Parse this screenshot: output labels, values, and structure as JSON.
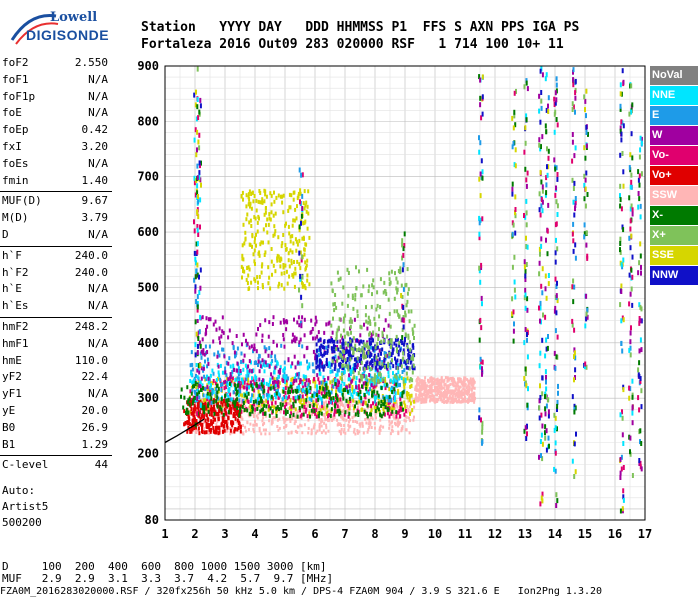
{
  "logo": {
    "line1": "Lowell",
    "line2": "DIGISONDE"
  },
  "header": {
    "row1": "Station   YYYY DAY   DDD HHMMSS P1  FFS S AXN PPS IGA PS",
    "row2": "Fortaleza 2016 Out09 283 020000 RSF   1 714 100 10+ 11"
  },
  "params": [
    {
      "label": "foF2",
      "value": "2.550"
    },
    {
      "label": "foF1",
      "value": "N/A"
    },
    {
      "label": "foF1p",
      "value": "N/A"
    },
    {
      "label": "foE",
      "value": "N/A"
    },
    {
      "label": "foEp",
      "value": "0.42"
    },
    {
      "label": "fxI",
      "value": "3.20"
    },
    {
      "label": "foEs",
      "value": "N/A"
    },
    {
      "label": "fmin",
      "value": "1.40"
    },
    {
      "label": "MUF(D)",
      "value": "9.67"
    },
    {
      "label": "M(D)",
      "value": "3.79"
    },
    {
      "label": "D",
      "value": "N/A"
    },
    {
      "label": "h`F",
      "value": "240.0"
    },
    {
      "label": "h`F2",
      "value": "240.0"
    },
    {
      "label": "h`E",
      "value": "N/A"
    },
    {
      "label": "h`Es",
      "value": "N/A"
    },
    {
      "label": "hmF2",
      "value": "248.2"
    },
    {
      "label": "hmF1",
      "value": "N/A"
    },
    {
      "label": "hmE",
      "value": "110.0"
    },
    {
      "label": "yF2",
      "value": "22.4"
    },
    {
      "label": "yF1",
      "value": "N/A"
    },
    {
      "label": "yE",
      "value": "20.0"
    },
    {
      "label": "B0",
      "value": "26.9"
    },
    {
      "label": "B1",
      "value": "1.29"
    },
    {
      "label": "C-level",
      "value": "44"
    }
  ],
  "autoscale": {
    "line1": "Auto:",
    "line2": "Artist5",
    "line3": "500200"
  },
  "bottom": {
    "d_row": "D     100  200  400  600  800 1000 1500 3000 [km]",
    "muf_row": "MUF   2.9  2.9  3.1  3.3  3.7  4.2  5.7  9.7 [MHz]",
    "file_row": "FZA0M_2016283020000.RSF / 320fx256h 50 kHz 5.0 km / DPS-4 FZA0M 904 / 3.9 S 321.6 E   Ion2Png 1.3.20"
  },
  "legend": [
    {
      "name": "NoVal",
      "color": "#808080"
    },
    {
      "name": "NNE",
      "color": "#00e5ff"
    },
    {
      "name": "E",
      "color": "#1e9be8"
    },
    {
      "name": "W",
      "color": "#a000a0"
    },
    {
      "name": "Vo-",
      "color": "#e0006e"
    },
    {
      "name": "Vo+",
      "color": "#e00000"
    },
    {
      "name": "SSW",
      "color": "#ffb6b6"
    },
    {
      "name": "X-",
      "color": "#007a00"
    },
    {
      "name": "X+",
      "color": "#7fc25a"
    },
    {
      "name": "SSE",
      "color": "#d6d600"
    },
    {
      "name": "NNW",
      "color": "#1010c8"
    }
  ],
  "chart_data": {
    "type": "scatter",
    "xlabel": "",
    "ylabel": "",
    "xlim": [
      1,
      17
    ],
    "ylim": [
      80,
      900
    ],
    "x_ticks": [
      1,
      2,
      3,
      4,
      5,
      6,
      7,
      8,
      9,
      10,
      11,
      12,
      13,
      14,
      15,
      16,
      17
    ],
    "y_ticks": [
      80,
      200,
      300,
      400,
      500,
      600,
      700,
      800,
      900
    ],
    "grid": true,
    "trace": {
      "name": "",
      "color": "#000000",
      "points": [
        [
          1.0,
          220
        ],
        [
          1.4,
          232
        ],
        [
          1.8,
          245
        ],
        [
          2.1,
          255
        ],
        [
          2.3,
          262
        ]
      ]
    },
    "echo_regions": [
      {
        "name": "SSW",
        "color": "#ffb6b6",
        "x": [
          1.9,
          9.3
        ],
        "y": [
          238,
          300
        ]
      },
      {
        "name": "SSW",
        "color": "#ffb6b6",
        "x": [
          9.3,
          11.3
        ],
        "y": [
          295,
          340
        ]
      },
      {
        "name": "SSE",
        "color": "#d6d600",
        "x": [
          1.8,
          9.3
        ],
        "y": [
          275,
          340
        ]
      },
      {
        "name": "Vo-",
        "color": "#e0006e",
        "x": [
          1.8,
          9.0
        ],
        "y": [
          270,
          340
        ]
      },
      {
        "name": "Vo+",
        "color": "#e00000",
        "x": [
          1.6,
          3.5
        ],
        "y": [
          240,
          300
        ]
      },
      {
        "name": "E",
        "color": "#1e9be8",
        "x": [
          1.8,
          9.0
        ],
        "y": [
          295,
          400
        ]
      },
      {
        "name": "NNE",
        "color": "#00e5ff",
        "x": [
          1.8,
          9.0
        ],
        "y": [
          300,
          370
        ]
      },
      {
        "name": "W",
        "color": "#a000a0",
        "x": [
          2.0,
          8.5
        ],
        "y": [
          320,
          450
        ]
      },
      {
        "name": "NNW",
        "color": "#1010c8",
        "x": [
          6.0,
          9.3
        ],
        "y": [
          355,
          410
        ]
      },
      {
        "name": "SSE",
        "color": "#d6d600",
        "x": [
          3.5,
          5.8
        ],
        "y": [
          500,
          680
        ]
      },
      {
        "name": "X-",
        "color": "#007a00",
        "x": [
          1.5,
          9.0
        ],
        "y": [
          270,
          330
        ]
      },
      {
        "name": "X+",
        "color": "#7fc25a",
        "x": [
          6.5,
          9.3
        ],
        "y": [
          330,
          540
        ]
      }
    ],
    "vertical_streaks": [
      {
        "x": 2.0,
        "y": [
          250,
          900
        ]
      },
      {
        "x": 2.1,
        "y": [
          280,
          850
        ]
      },
      {
        "x": 5.5,
        "y": [
          420,
          720
        ]
      },
      {
        "x": 8.9,
        "y": [
          400,
          620
        ]
      },
      {
        "x": 11.5,
        "y": [
          220,
          900
        ]
      },
      {
        "x": 12.6,
        "y": [
          400,
          870
        ]
      },
      {
        "x": 13.0,
        "y": [
          160,
          880
        ]
      },
      {
        "x": 13.5,
        "y": [
          100,
          900
        ]
      },
      {
        "x": 13.7,
        "y": [
          200,
          900
        ]
      },
      {
        "x": 14.0,
        "y": [
          110,
          900
        ]
      },
      {
        "x": 14.6,
        "y": [
          160,
          900
        ]
      },
      {
        "x": 15.0,
        "y": [
          350,
          870
        ]
      },
      {
        "x": 16.2,
        "y": [
          100,
          900
        ]
      },
      {
        "x": 16.5,
        "y": [
          150,
          880
        ]
      },
      {
        "x": 16.8,
        "y": [
          150,
          800
        ]
      }
    ]
  }
}
